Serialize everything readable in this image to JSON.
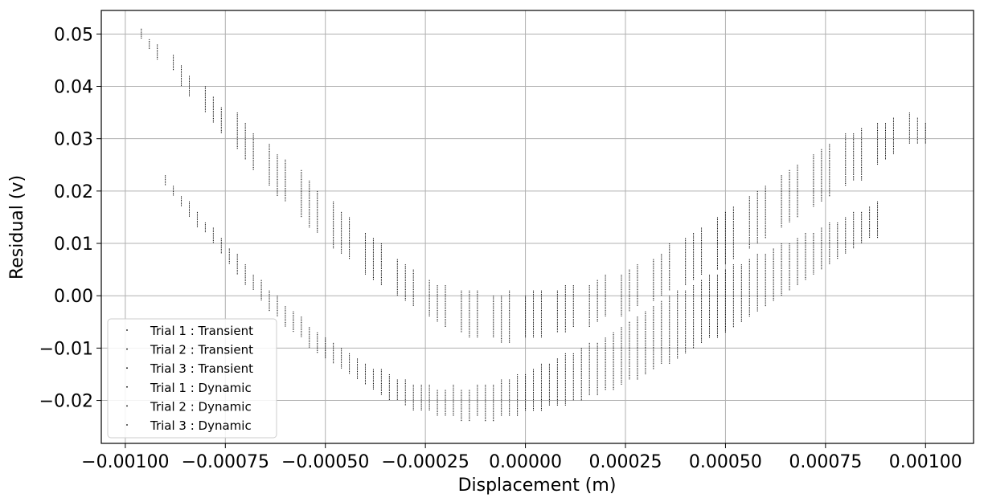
{
  "chart_data": {
    "type": "scatter",
    "title": "",
    "xlabel": "Displacement (m)",
    "ylabel": "Residual (v)",
    "xlim": [
      -0.00106,
      0.00112
    ],
    "ylim": [
      -0.0282,
      0.0545
    ],
    "grid": true,
    "legend_position": "lower-left",
    "marker_color": "#000000",
    "x_ticks": [
      {
        "value": -0.001,
        "label": "−0.00100"
      },
      {
        "value": -0.00075,
        "label": "−0.00075"
      },
      {
        "value": -0.0005,
        "label": "−0.00050"
      },
      {
        "value": -0.00025,
        "label": "−0.00025"
      },
      {
        "value": 0.0,
        "label": "0.00000"
      },
      {
        "value": 0.00025,
        "label": "0.00025"
      },
      {
        "value": 0.0005,
        "label": "0.00050"
      },
      {
        "value": 0.00075,
        "label": "0.00075"
      },
      {
        "value": 0.001,
        "label": "0.00100"
      }
    ],
    "y_ticks": [
      {
        "value": -0.02,
        "label": "−0.02"
      },
      {
        "value": -0.01,
        "label": "−0.01"
      },
      {
        "value": 0.0,
        "label": "0.00"
      },
      {
        "value": 0.01,
        "label": "0.01"
      },
      {
        "value": 0.02,
        "label": "0.02"
      },
      {
        "value": 0.03,
        "label": "0.03"
      },
      {
        "value": 0.04,
        "label": "0.04"
      },
      {
        "value": 0.05,
        "label": "0.05"
      }
    ],
    "series": [
      {
        "name": "Trial 1 : Transient",
        "band": "upper",
        "x": [
          -0.00096,
          -0.00088,
          -0.0008,
          -0.00072,
          -0.00064,
          -0.00056,
          -0.00048,
          -0.0004,
          -0.00032,
          -0.00024,
          -0.00016,
          -8e-05,
          0.0,
          8e-05,
          0.00016,
          0.00024,
          0.00032,
          0.0004,
          0.00048,
          0.00056,
          0.00064,
          0.00072,
          0.0008,
          0.00088,
          0.00096
        ],
        "y_low": [
          0.049,
          0.043,
          0.035,
          0.028,
          0.021,
          0.015,
          0.009,
          0.004,
          0.0,
          -0.004,
          -0.007,
          -0.008,
          -0.008,
          -0.007,
          -0.006,
          -0.004,
          -0.001,
          0.002,
          0.005,
          0.009,
          0.013,
          0.017,
          0.021,
          0.025,
          0.029
        ],
        "y_high": [
          0.051,
          0.046,
          0.04,
          0.035,
          0.029,
          0.024,
          0.018,
          0.012,
          0.007,
          0.003,
          0.001,
          0.0,
          0.0,
          0.001,
          0.002,
          0.004,
          0.007,
          0.011,
          0.015,
          0.019,
          0.023,
          0.027,
          0.031,
          0.033,
          0.035
        ]
      },
      {
        "name": "Trial 2 : Transient",
        "band": "upper",
        "x": [
          -0.00094,
          -0.00086,
          -0.00078,
          -0.0007,
          -0.00062,
          -0.00054,
          -0.00046,
          -0.00038,
          -0.0003,
          -0.00022,
          -0.00014,
          -6e-05,
          2e-05,
          0.0001,
          0.00018,
          0.00026,
          0.00034,
          0.00042,
          0.0005,
          0.00058,
          0.00066,
          0.00074,
          0.00082,
          0.0009,
          0.00098
        ],
        "y_low": [
          0.047,
          0.04,
          0.033,
          0.026,
          0.019,
          0.013,
          0.008,
          0.003,
          -0.001,
          -0.005,
          -0.008,
          -0.009,
          -0.008,
          -0.007,
          -0.005,
          -0.003,
          0.0,
          0.003,
          0.006,
          0.01,
          0.014,
          0.018,
          0.022,
          0.026,
          0.029
        ],
        "y_high": [
          0.049,
          0.044,
          0.038,
          0.033,
          0.027,
          0.022,
          0.016,
          0.011,
          0.006,
          0.002,
          0.001,
          0.0,
          0.001,
          0.002,
          0.003,
          0.005,
          0.008,
          0.012,
          0.016,
          0.02,
          0.024,
          0.028,
          0.031,
          0.033,
          0.034
        ]
      },
      {
        "name": "Trial 3 : Transient",
        "band": "upper",
        "x": [
          -0.00092,
          -0.00084,
          -0.00076,
          -0.00068,
          -0.0006,
          -0.00052,
          -0.00044,
          -0.00036,
          -0.00028,
          -0.0002,
          -0.00012,
          -4e-05,
          4e-05,
          0.00012,
          0.0002,
          0.00028,
          0.00036,
          0.00044,
          0.00052,
          0.0006,
          0.00068,
          0.00076,
          0.00084,
          0.00092,
          0.001
        ],
        "y_low": [
          0.045,
          0.038,
          0.031,
          0.024,
          0.018,
          0.012,
          0.007,
          0.002,
          -0.002,
          -0.006,
          -0.008,
          -0.009,
          -0.008,
          -0.006,
          -0.004,
          -0.002,
          0.001,
          0.004,
          0.007,
          0.011,
          0.015,
          0.019,
          0.022,
          0.027,
          0.029
        ],
        "y_high": [
          0.048,
          0.042,
          0.036,
          0.031,
          0.026,
          0.02,
          0.015,
          0.01,
          0.005,
          0.002,
          0.001,
          0.001,
          0.001,
          0.002,
          0.004,
          0.006,
          0.01,
          0.013,
          0.017,
          0.021,
          0.025,
          0.029,
          0.032,
          0.034,
          0.033
        ]
      },
      {
        "name": "Trial 1 : Dynamic",
        "band": "lower",
        "x": [
          -0.0009,
          -0.00084,
          -0.00078,
          -0.00072,
          -0.00066,
          -0.0006,
          -0.00054,
          -0.00048,
          -0.00042,
          -0.00036,
          -0.0003,
          -0.00024,
          -0.00018,
          -0.00012,
          -6e-05,
          0.0,
          6e-05,
          0.00012,
          0.00018,
          0.00024,
          0.0003,
          0.00036,
          0.00042,
          0.00048,
          0.00054,
          0.0006,
          0.00066,
          0.00072,
          0.00078,
          0.00084
        ],
        "y_low": [
          0.021,
          0.015,
          0.01,
          0.004,
          -0.001,
          -0.006,
          -0.01,
          -0.013,
          -0.016,
          -0.019,
          -0.021,
          -0.022,
          -0.023,
          -0.023,
          -0.023,
          -0.022,
          -0.021,
          -0.02,
          -0.019,
          -0.017,
          -0.015,
          -0.013,
          -0.01,
          -0.008,
          -0.005,
          -0.002,
          0.001,
          0.004,
          0.007,
          0.01
        ],
        "y_high": [
          0.023,
          0.018,
          0.013,
          0.008,
          0.003,
          -0.002,
          -0.006,
          -0.009,
          -0.012,
          -0.014,
          -0.016,
          -0.017,
          -0.017,
          -0.017,
          -0.016,
          -0.015,
          -0.013,
          -0.011,
          -0.009,
          -0.006,
          -0.003,
          0.0,
          0.002,
          0.004,
          0.006,
          0.008,
          0.01,
          0.012,
          0.014,
          0.016
        ]
      },
      {
        "name": "Trial 2 : Dynamic",
        "band": "lower",
        "x": [
          -0.00088,
          -0.00082,
          -0.00076,
          -0.0007,
          -0.00064,
          -0.00058,
          -0.00052,
          -0.00046,
          -0.0004,
          -0.00034,
          -0.00028,
          -0.00022,
          -0.00016,
          -0.0001,
          -4e-05,
          2e-05,
          8e-05,
          0.00014,
          0.0002,
          0.00026,
          0.00032,
          0.00038,
          0.00044,
          0.0005,
          0.00056,
          0.00062,
          0.00068,
          0.00074,
          0.0008,
          0.00086
        ],
        "y_low": [
          0.019,
          0.013,
          0.008,
          0.002,
          -0.003,
          -0.007,
          -0.011,
          -0.014,
          -0.017,
          -0.02,
          -0.022,
          -0.023,
          -0.024,
          -0.024,
          -0.023,
          -0.022,
          -0.021,
          -0.02,
          -0.018,
          -0.016,
          -0.014,
          -0.012,
          -0.009,
          -0.007,
          -0.004,
          -0.001,
          0.002,
          0.005,
          0.008,
          0.011
        ],
        "y_high": [
          0.021,
          0.016,
          0.011,
          0.006,
          0.001,
          -0.003,
          -0.007,
          -0.01,
          -0.013,
          -0.015,
          -0.017,
          -0.018,
          -0.018,
          -0.017,
          -0.016,
          -0.014,
          -0.012,
          -0.01,
          -0.008,
          -0.005,
          -0.002,
          0.001,
          0.003,
          0.005,
          0.007,
          0.009,
          0.011,
          0.013,
          0.015,
          0.017
        ]
      },
      {
        "name": "Trial 3 : Dynamic",
        "band": "lower",
        "x": [
          -0.00086,
          -0.0008,
          -0.00074,
          -0.00068,
          -0.00062,
          -0.00056,
          -0.0005,
          -0.00044,
          -0.00038,
          -0.00032,
          -0.00026,
          -0.0002,
          -0.00014,
          -8e-05,
          -2e-05,
          4e-05,
          0.0001,
          0.00016,
          0.00022,
          0.00028,
          0.00034,
          0.0004,
          0.00046,
          0.00052,
          0.00058,
          0.00064,
          0.0007,
          0.00076,
          0.00082,
          0.00088
        ],
        "y_low": [
          0.017,
          0.012,
          0.006,
          0.001,
          -0.004,
          -0.008,
          -0.012,
          -0.015,
          -0.018,
          -0.02,
          -0.022,
          -0.023,
          -0.024,
          -0.024,
          -0.023,
          -0.022,
          -0.021,
          -0.019,
          -0.018,
          -0.016,
          -0.013,
          -0.011,
          -0.008,
          -0.006,
          -0.003,
          0.0,
          0.003,
          0.006,
          0.009,
          0.011
        ],
        "y_high": [
          0.019,
          0.014,
          0.009,
          0.004,
          0.0,
          -0.004,
          -0.008,
          -0.011,
          -0.014,
          -0.016,
          -0.017,
          -0.018,
          -0.018,
          -0.017,
          -0.015,
          -0.013,
          -0.011,
          -0.009,
          -0.007,
          -0.004,
          -0.001,
          0.001,
          0.004,
          0.006,
          0.008,
          0.01,
          0.012,
          0.014,
          0.016,
          0.018
        ]
      }
    ]
  }
}
